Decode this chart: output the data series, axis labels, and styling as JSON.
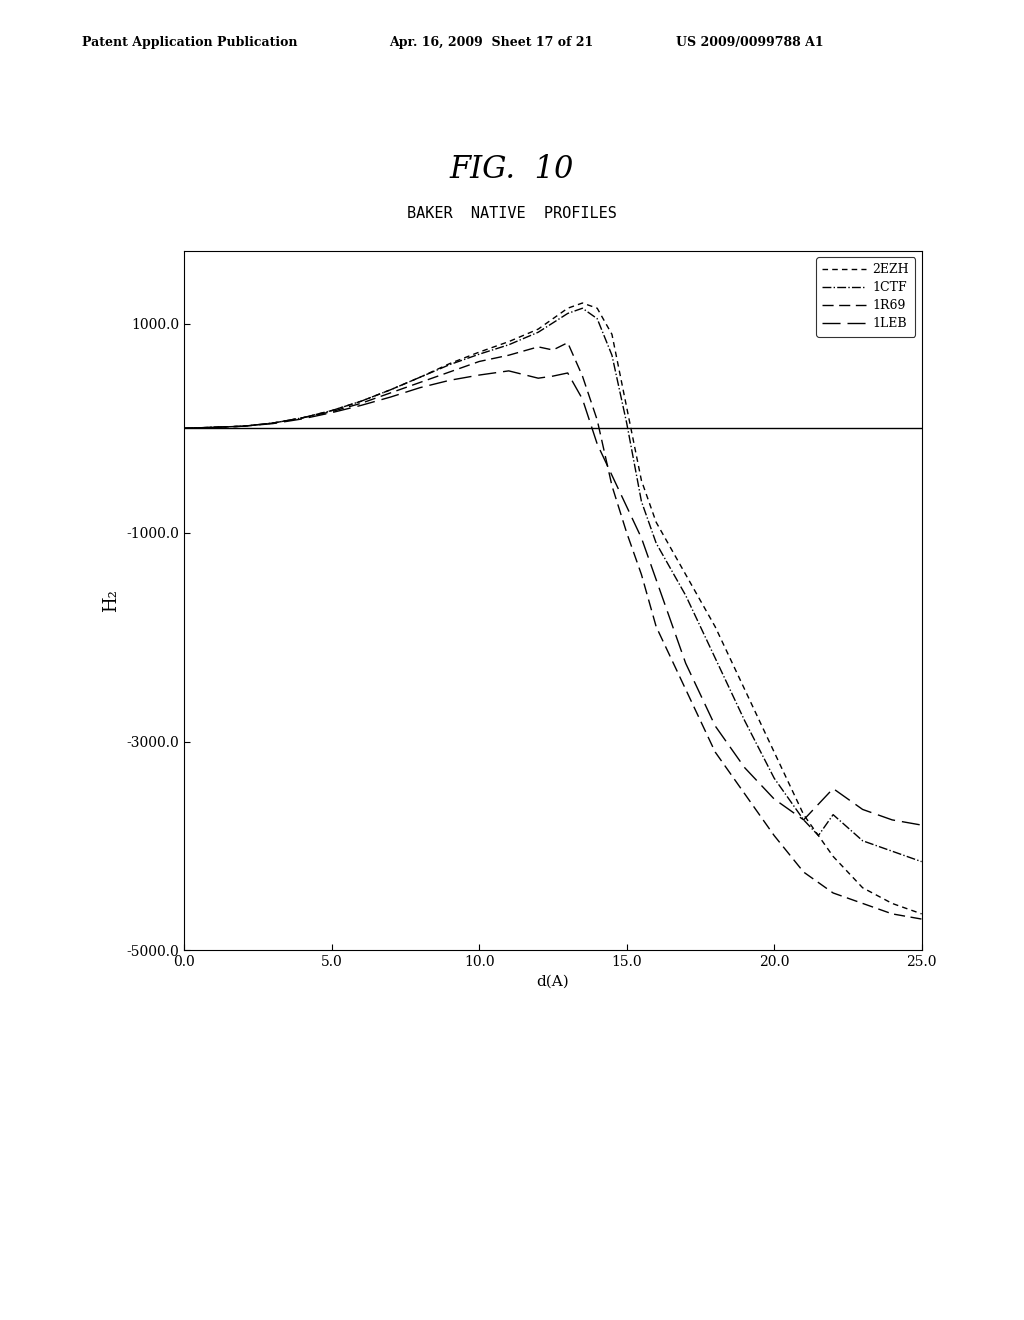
{
  "fig_title": "FIG.  10",
  "chart_title": "BAKER  NATIVE  PROFILES",
  "xlabel": "d(A)",
  "ylabel": "H₂",
  "header_left": "Patent Application Publication",
  "header_mid": "Apr. 16, 2009  Sheet 17 of 21",
  "header_right": "US 2009/0099788 A1",
  "xlim": [
    0.0,
    25.0
  ],
  "ylim": [
    -5000.0,
    1700.0
  ],
  "xticks": [
    0.0,
    5.0,
    10.0,
    15.0,
    20.0,
    25.0
  ],
  "yticks": [
    -5000.0,
    -3000.0,
    -1000.0,
    1000.0
  ],
  "hline_y": 0,
  "legend_labels": [
    "2EZH",
    "1CTF",
    "1R69",
    "1LEB"
  ],
  "background_color": "#ffffff",
  "line_color": "#000000",
  "x_2ezh": [
    0,
    1,
    2,
    3,
    4,
    5,
    6,
    7,
    8,
    9,
    10,
    11,
    12,
    12.5,
    13,
    13.5,
    14,
    14.5,
    15,
    15.5,
    16,
    17,
    18,
    19,
    20,
    21,
    22,
    23,
    24,
    25
  ],
  "y_2ezh": [
    0,
    10,
    20,
    50,
    100,
    170,
    260,
    370,
    490,
    620,
    730,
    830,
    950,
    1050,
    1150,
    1200,
    1150,
    900,
    200,
    -500,
    -900,
    -1400,
    -1900,
    -2500,
    -3100,
    -3700,
    -4100,
    -4400,
    -4550,
    -4650
  ],
  "x_1ctf": [
    0,
    1,
    2,
    3,
    4,
    5,
    6,
    7,
    8,
    9,
    10,
    11,
    12,
    12.5,
    13,
    13.5,
    14,
    14.5,
    15,
    15.5,
    16,
    17,
    18,
    19,
    20,
    21,
    21.5,
    22,
    23,
    24,
    25
  ],
  "y_1ctf": [
    0,
    10,
    20,
    50,
    100,
    170,
    260,
    370,
    490,
    610,
    710,
    800,
    920,
    1010,
    1100,
    1150,
    1050,
    700,
    50,
    -700,
    -1100,
    -1600,
    -2200,
    -2800,
    -3350,
    -3750,
    -3900,
    -3700,
    -3950,
    -4050,
    -4150
  ],
  "x_1r69": [
    0,
    1,
    2,
    3,
    4,
    5,
    6,
    7,
    8,
    9,
    10,
    11,
    12,
    12.5,
    13,
    13.5,
    14,
    14.5,
    15,
    15.5,
    16,
    17,
    18,
    19,
    20,
    21,
    22,
    23,
    24,
    25
  ],
  "y_1r69": [
    0,
    10,
    20,
    50,
    100,
    160,
    240,
    340,
    440,
    540,
    640,
    700,
    780,
    750,
    820,
    500,
    80,
    -550,
    -1000,
    -1400,
    -1900,
    -2500,
    -3100,
    -3500,
    -3900,
    -4250,
    -4450,
    -4550,
    -4650,
    -4700
  ],
  "x_1leb": [
    0,
    1,
    2,
    3,
    4,
    5,
    6,
    7,
    8,
    9,
    10,
    11,
    12,
    12.5,
    13,
    13.5,
    14,
    14.5,
    15,
    15.5,
    16,
    16.5,
    17,
    18,
    19,
    20,
    21,
    22,
    23,
    24,
    25
  ],
  "y_1leb": [
    0,
    10,
    20,
    45,
    90,
    150,
    220,
    300,
    390,
    460,
    510,
    550,
    480,
    500,
    530,
    280,
    -150,
    -450,
    -750,
    -1050,
    -1450,
    -1850,
    -2250,
    -2850,
    -3250,
    -3550,
    -3750,
    -3450,
    -3650,
    -3750,
    -3800
  ]
}
